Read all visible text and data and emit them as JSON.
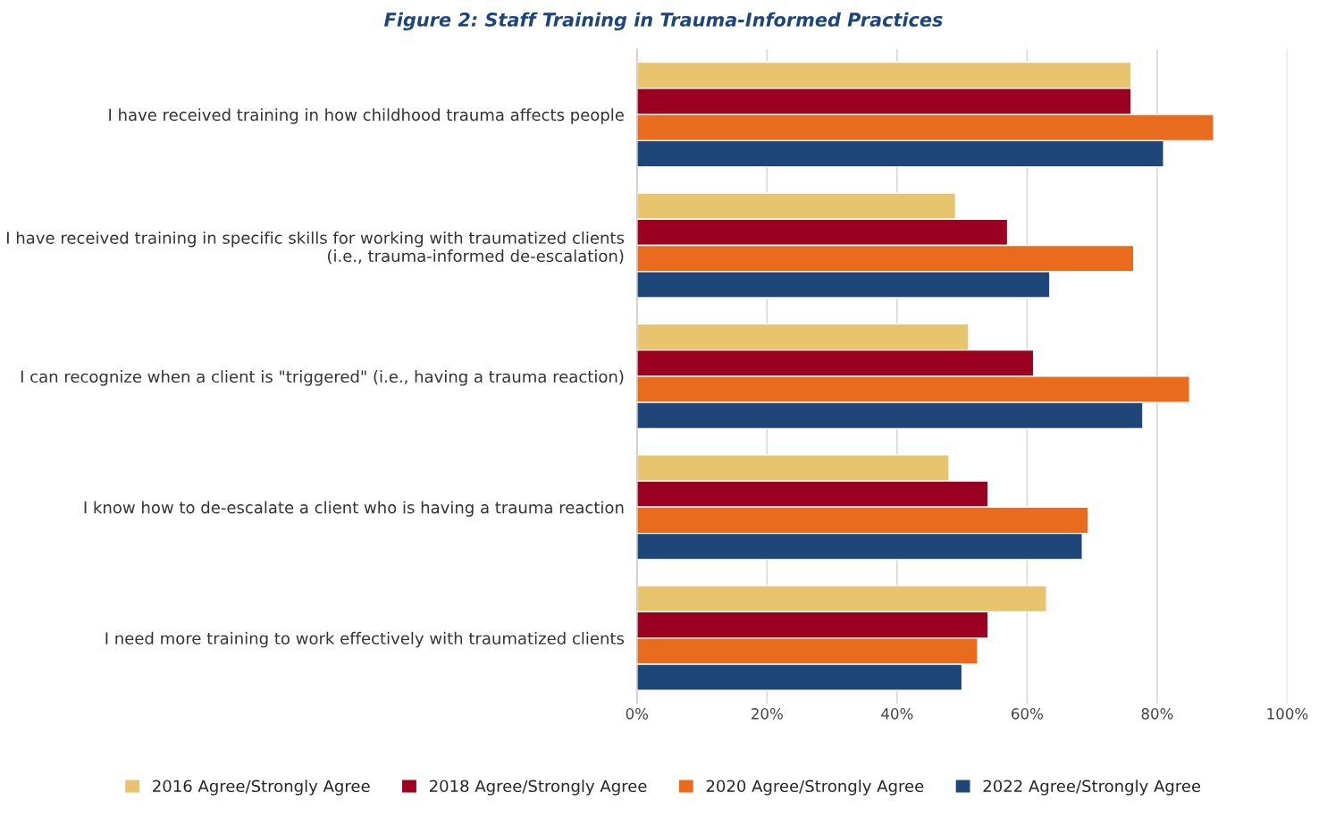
{
  "chart_data": {
    "type": "bar",
    "orientation": "horizontal",
    "title": "Figure 2: Staff Training in Trauma-Informed Practices",
    "categories": [
      "I have received training in how childhood trauma affects people",
      "I have received training in specific skills for working with traumatized clients (i.e., trauma-informed de-escalation)",
      "I can recognize when a client is \"triggered\" (i.e., having a trauma reaction)",
      "I know how to de-escalate a client who is having a trauma reaction",
      "I need more training to work effectively with traumatized clients"
    ],
    "series": [
      {
        "name": "2016 Agree/Strongly Agree",
        "color": "#e8c46e",
        "values": [
          76,
          49,
          51,
          48,
          63
        ]
      },
      {
        "name": "2018 Agree/Strongly Agree",
        "color": "#9b0020",
        "values": [
          76,
          57,
          61,
          54,
          54
        ]
      },
      {
        "name": "2020 Agree/Strongly Agree",
        "color": "#e86b1e",
        "values": [
          88.7,
          76.4,
          85,
          69.4,
          52.4
        ]
      },
      {
        "name": "2022 Agree/Strongly Agree",
        "color": "#1f4678",
        "values": [
          81,
          63.5,
          77.8,
          68.5,
          50
        ]
      }
    ],
    "xlim": [
      0,
      100
    ],
    "xticks": [
      {
        "value": 0,
        "label": "0%"
      },
      {
        "value": 20,
        "label": "20%"
      },
      {
        "value": 40,
        "label": "40%"
      },
      {
        "value": 60,
        "label": "60%"
      },
      {
        "value": 80,
        "label": "80%"
      },
      {
        "value": 100,
        "label": "100%"
      }
    ],
    "grid": "x",
    "legend": "bottom"
  }
}
